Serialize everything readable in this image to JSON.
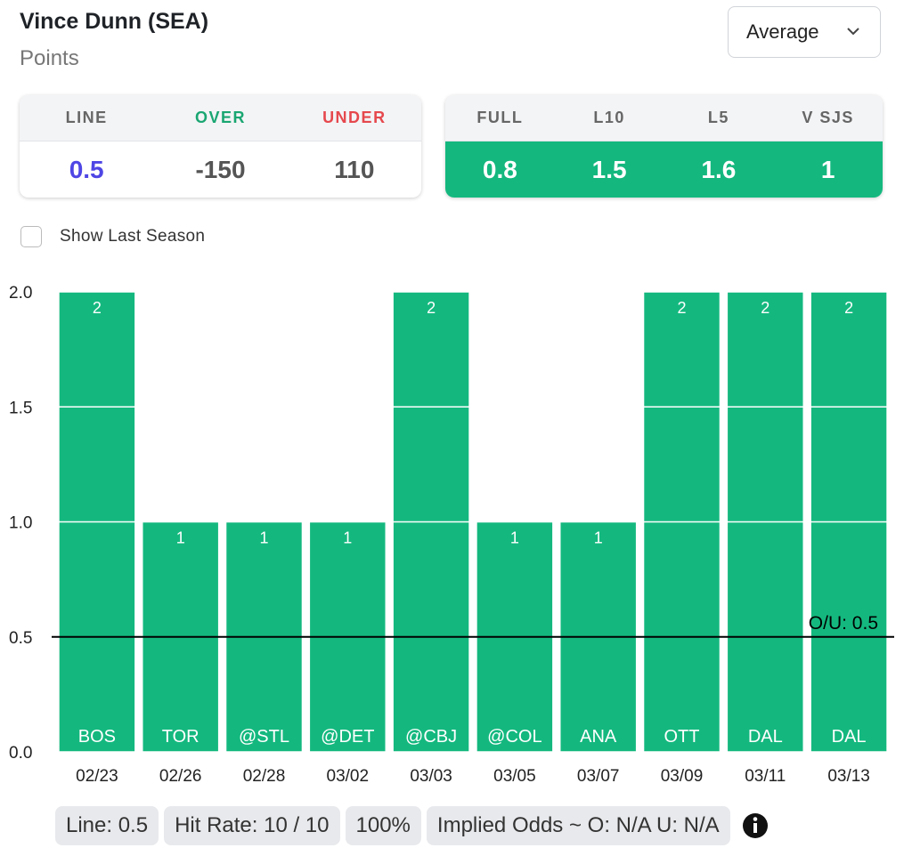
{
  "header": {
    "title": "Vince Dunn (SEA)",
    "subtitle": "Points",
    "dropdown": "Average"
  },
  "line_table": {
    "headers": [
      "LINE",
      "OVER",
      "UNDER"
    ],
    "values": [
      0.5,
      -150,
      110
    ]
  },
  "avg_table": {
    "headers": [
      "FULL",
      "L10",
      "L5",
      "V SJS"
    ],
    "values": [
      0.8,
      1.5,
      1.6,
      1
    ]
  },
  "checkbox_label": "Show Last Season",
  "chart_data": {
    "type": "bar",
    "categories": [
      "02/23",
      "02/26",
      "02/28",
      "03/02",
      "03/03",
      "03/05",
      "03/07",
      "03/09",
      "03/11",
      "03/13"
    ],
    "opponents": [
      "BOS",
      "TOR",
      "@STL",
      "@DET",
      "@CBJ",
      "@COL",
      "ANA",
      "OTT",
      "DAL",
      "DAL"
    ],
    "values": [
      2,
      1,
      1,
      1,
      2,
      1,
      1,
      2,
      2,
      2
    ],
    "color": "#14b87f",
    "ylim": [
      0,
      2
    ],
    "yticks": [
      {
        "value": 0,
        "label": "0.0"
      },
      0.5,
      {
        "value": 1,
        "label": "1.0"
      },
      1.5,
      {
        "value": 2,
        "label": "2.0"
      }
    ],
    "grid": true,
    "reference_line": {
      "value": 0.5,
      "label": "O/U: 0.5"
    }
  },
  "footer": {
    "pills": [
      "Line: 0.5",
      "Hit Rate: 10 / 10",
      "100%",
      "Implied Odds ~ O: N/A U: N/A"
    ]
  }
}
